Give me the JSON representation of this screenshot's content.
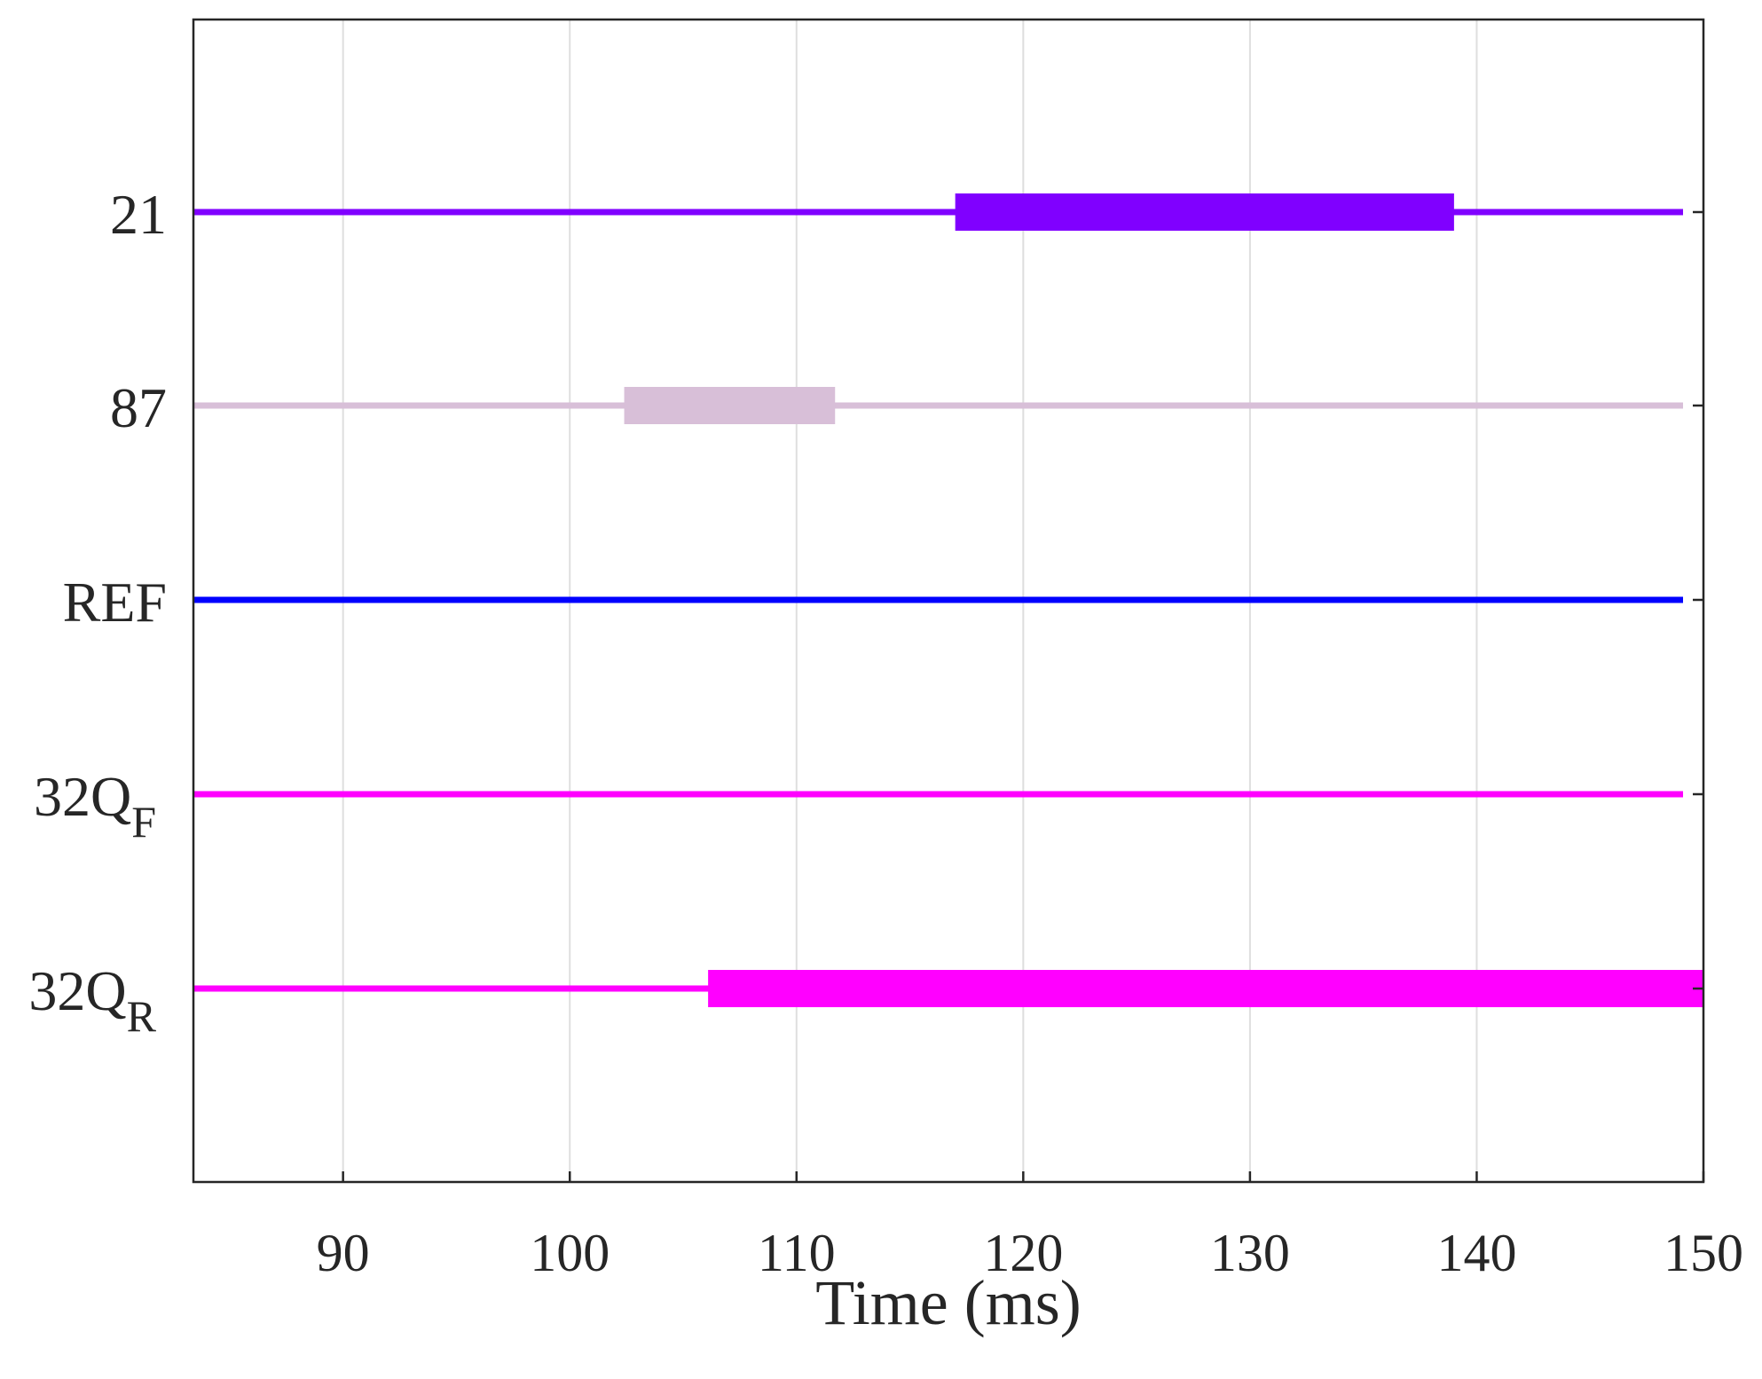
{
  "chart_data": {
    "type": "timeline",
    "title": "",
    "xlabel": "Time (ms)",
    "ylabel": "",
    "xlim": [
      83.4,
      150
    ],
    "xticks": [
      90,
      100,
      110,
      120,
      130,
      140,
      150
    ],
    "grid": {
      "x": true,
      "y": false
    },
    "series": [
      {
        "key": "21",
        "label": "21",
        "label_sub": "",
        "color": "#8000ff",
        "line_end": 149.1,
        "active": [
          [
            117,
            139
          ]
        ]
      },
      {
        "key": "87",
        "label": "87",
        "label_sub": "",
        "color": "#d8bfd8",
        "line_end": 149.1,
        "active": [
          [
            102.4,
            111.7
          ]
        ]
      },
      {
        "key": "ref",
        "label": "REF",
        "label_sub": "",
        "color": "#0000ff",
        "line_end": 149.1,
        "active": []
      },
      {
        "key": "32qf",
        "label": "32Q",
        "label_sub": "F",
        "color": "#ff00ff",
        "line_end": 149.1,
        "active": []
      },
      {
        "key": "32qr",
        "label": "32Q",
        "label_sub": "R",
        "color": "#ff00ff",
        "line_end": 150,
        "active": [
          [
            106.1,
            150
          ]
        ]
      }
    ]
  }
}
